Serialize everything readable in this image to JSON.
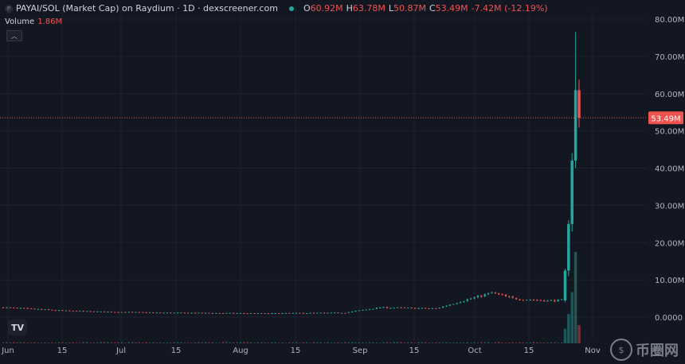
{
  "header": {
    "logo_letter": "P",
    "title": "PAYAI/SOL (Market Cap) on Raydium · 1D · dexscreener.com",
    "ohlc": [
      {
        "label": "O",
        "value": "60.92M"
      },
      {
        "label": "H",
        "value": "63.78M"
      },
      {
        "label": "L",
        "value": "50.87M"
      },
      {
        "label": "C",
        "value": "53.49M"
      }
    ],
    "change": "-7.42M (-12.19%)"
  },
  "volume": {
    "label": "Volume",
    "value": "1.86M",
    "collapse_icon": "chevron-up-icon"
  },
  "watermark": {
    "text": "币圈网"
  },
  "colors": {
    "up": "#26a69a",
    "down": "#ef5350",
    "background": "#131722",
    "grid": "#1e222d"
  },
  "chart_data": {
    "type": "candlestick",
    "y_ticks": [
      "0.0000",
      "10.00M",
      "20.00M",
      "30.00M",
      "40.00M",
      "50.00M",
      "60.00M",
      "70.00M",
      "80.00M"
    ],
    "ylim": [
      0,
      80
    ],
    "y_unit": "M",
    "x_ticks": [
      "Jun",
      "15",
      "Jul",
      "15",
      "Aug",
      "15",
      "Sep",
      "15",
      "Oct",
      "15",
      "Nov"
    ],
    "last_price_label": "53.49M",
    "last_price": 53.49,
    "candles_summary": [
      {
        "date": "Jun",
        "o": 2.6,
        "h": 3.2,
        "l": 2.0,
        "c": 2.4
      },
      {
        "date": "Jul",
        "o": 1.3,
        "h": 1.6,
        "l": 1.0,
        "c": 1.2
      },
      {
        "date": "Aug",
        "o": 1.2,
        "h": 1.5,
        "l": 0.9,
        "c": 1.1
      },
      {
        "date": "Sep",
        "o": 1.3,
        "h": 3.0,
        "l": 1.0,
        "c": 2.6
      },
      {
        "date": "Oct",
        "o": 4.8,
        "h": 7.5,
        "l": 4.0,
        "c": 6.0
      },
      {
        "date": "Oct 15",
        "o": 4.5,
        "h": 5.0,
        "l": 3.6,
        "c": 4.4
      },
      {
        "date": "Oct 25",
        "o": 4.5,
        "h": 13.0,
        "l": 4.0,
        "c": 12.5
      },
      {
        "date": "Oct 26",
        "o": 12.5,
        "h": 26.0,
        "l": 11.0,
        "c": 25.0
      },
      {
        "date": "Oct 27",
        "o": 25.0,
        "h": 44.0,
        "l": 23.0,
        "c": 42.0
      },
      {
        "date": "Oct 28",
        "o": 42.0,
        "h": 76.5,
        "l": 40.0,
        "c": 60.92
      },
      {
        "date": "Oct 29",
        "o": 60.92,
        "h": 63.78,
        "l": 50.87,
        "c": 53.49
      }
    ]
  }
}
